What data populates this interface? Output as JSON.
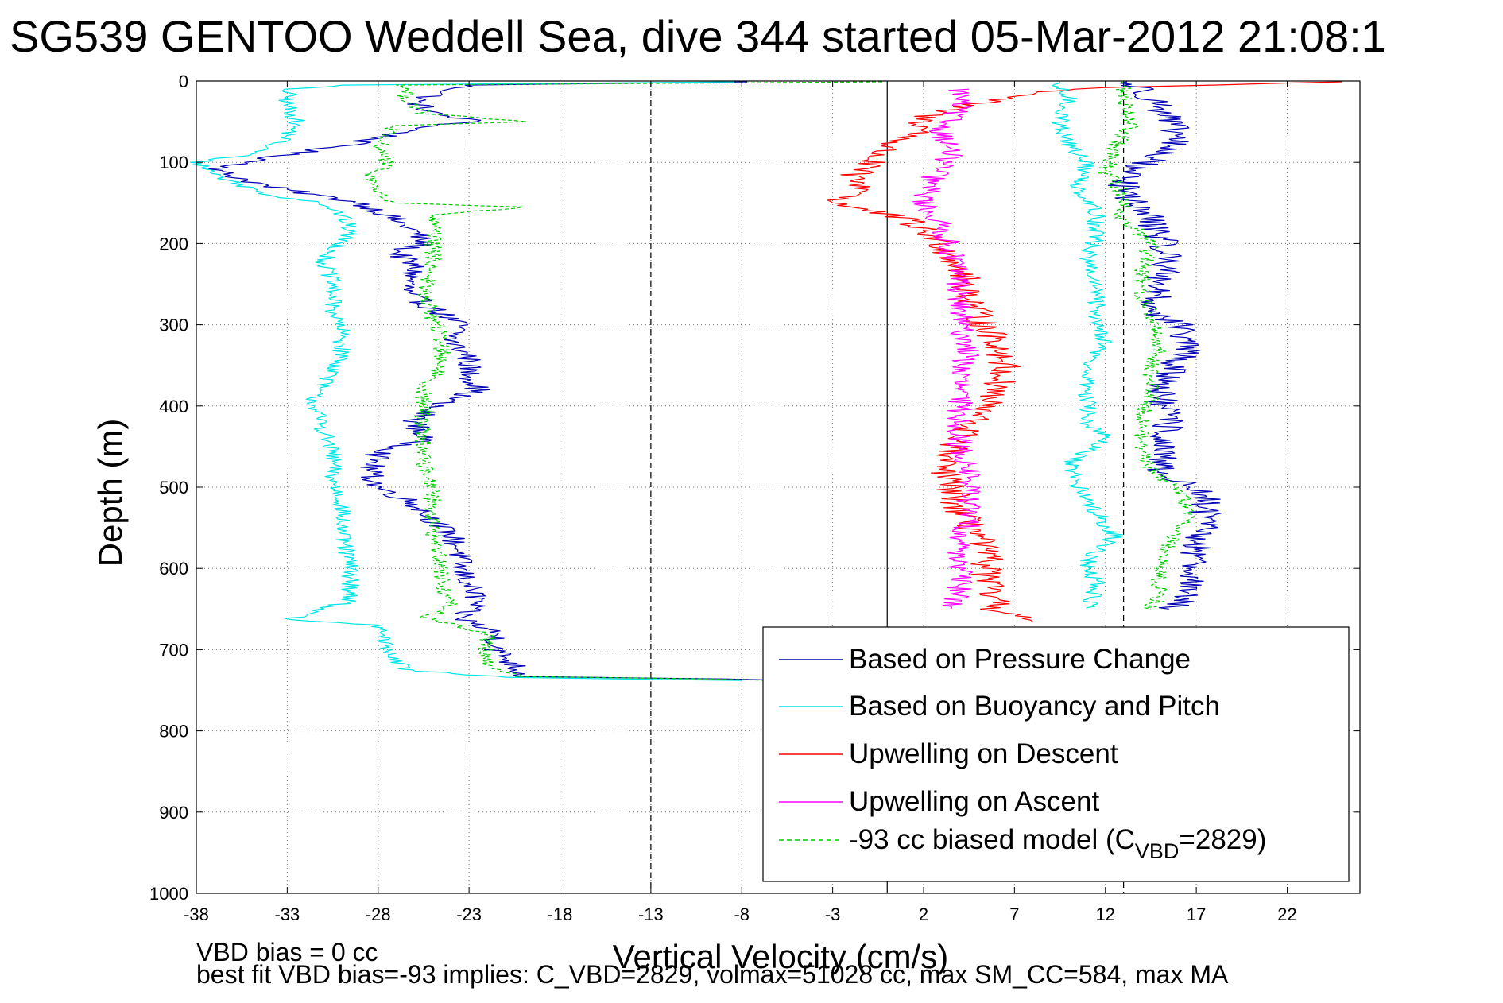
{
  "chart_data": {
    "type": "line",
    "title": "SG539 GENTOO Weddell Sea, dive 344 started 05-Mar-2012 21:08:1",
    "xlabel": "Vertical Velocity (cm/s)",
    "ylabel": "Depth (m)",
    "xlim": [
      -38,
      26
    ],
    "ylim": [
      0,
      1000
    ],
    "y_reversed": true,
    "grid": true,
    "xticks": [
      -38,
      -33,
      -28,
      -23,
      -18,
      -13,
      -8,
      -3,
      2,
      7,
      12,
      17,
      22
    ],
    "yticks": [
      0,
      100,
      200,
      300,
      400,
      500,
      600,
      700,
      800,
      900,
      1000
    ],
    "legend_position": "bottom-right",
    "reference_lines": [
      {
        "x": -13,
        "style": "dashed",
        "color": "#000000"
      },
      {
        "x": 0,
        "style": "solid",
        "color": "#000000"
      },
      {
        "x": 13,
        "style": "dashed",
        "color": "#000000"
      }
    ],
    "series": [
      {
        "name": "Based on Pressure Change",
        "color": "#0000b4",
        "style": "solid",
        "noise": 0.7,
        "points": [
          [
            -8,
            1
          ],
          [
            -23,
            5
          ],
          [
            -24.5,
            15
          ],
          [
            -26,
            25
          ],
          [
            -25,
            40
          ],
          [
            -22.5,
            50
          ],
          [
            -25,
            55
          ],
          [
            -26,
            60
          ],
          [
            -30,
            80
          ],
          [
            -33,
            90
          ],
          [
            -35,
            100
          ],
          [
            -37,
            110
          ],
          [
            -34,
            130
          ],
          [
            -29,
            150
          ],
          [
            -27.5,
            165
          ],
          [
            -26,
            185
          ],
          [
            -25.5,
            200
          ],
          [
            -27,
            210
          ],
          [
            -26,
            230
          ],
          [
            -26.5,
            260
          ],
          [
            -25,
            280
          ],
          [
            -23.5,
            300
          ],
          [
            -24,
            320
          ],
          [
            -23,
            340
          ],
          [
            -23,
            360
          ],
          [
            -22.5,
            380
          ],
          [
            -25,
            400
          ],
          [
            -26,
            420
          ],
          [
            -25.5,
            440
          ],
          [
            -28,
            460
          ],
          [
            -28.5,
            480
          ],
          [
            -28,
            500
          ],
          [
            -26,
            520
          ],
          [
            -25,
            540
          ],
          [
            -24,
            560
          ],
          [
            -23.5,
            580
          ],
          [
            -23.5,
            600
          ],
          [
            -23,
            620
          ],
          [
            -22.5,
            640
          ],
          [
            -23.5,
            660
          ],
          [
            -21.5,
            680
          ],
          [
            -21.5,
            700
          ],
          [
            -20.5,
            720
          ],
          [
            -20,
            733
          ],
          [
            -9,
            736
          ],
          [
            -5,
            738
          ]
        ]
      },
      {
        "name": "Based on Buoyancy and Pitch",
        "color": "#00e5e5",
        "style": "solid",
        "noise": 0.5,
        "points": [
          [
            -8,
            1
          ],
          [
            -30,
            5
          ],
          [
            -33,
            10
          ],
          [
            -33,
            30
          ],
          [
            -32.5,
            50
          ],
          [
            -33,
            70
          ],
          [
            -35,
            90
          ],
          [
            -38,
            100
          ],
          [
            -36.5,
            120
          ],
          [
            -34,
            140
          ],
          [
            -31,
            150
          ],
          [
            -30,
            165
          ],
          [
            -29.5,
            185
          ],
          [
            -30,
            200
          ],
          [
            -31,
            220
          ],
          [
            -30.5,
            250
          ],
          [
            -30.5,
            280
          ],
          [
            -30,
            310
          ],
          [
            -30,
            340
          ],
          [
            -30.5,
            360
          ],
          [
            -31.5,
            385
          ],
          [
            -31.5,
            400
          ],
          [
            -31,
            430
          ],
          [
            -30.5,
            460
          ],
          [
            -30.5,
            490
          ],
          [
            -30,
            520
          ],
          [
            -30,
            560
          ],
          [
            -29.5,
            600
          ],
          [
            -29.5,
            640
          ],
          [
            -33,
            663
          ],
          [
            -28,
            670
          ],
          [
            -27.5,
            700
          ],
          [
            -26.5,
            725
          ],
          [
            -21,
            734
          ],
          [
            -15,
            736
          ],
          [
            -8,
            738
          ]
        ]
      },
      {
        "name": "Upwelling on Descent",
        "color": "#ff0000",
        "style": "solid",
        "noise": 0.9,
        "points": [
          [
            25,
            1
          ],
          [
            21,
            3
          ],
          [
            18,
            5
          ],
          [
            12,
            8
          ],
          [
            10,
            10
          ],
          [
            7,
            20
          ],
          [
            4,
            30
          ],
          [
            2,
            45
          ],
          [
            2,
            60
          ],
          [
            0,
            80
          ],
          [
            -1,
            100
          ],
          [
            -2,
            120
          ],
          [
            -1,
            135
          ],
          [
            -3,
            150
          ],
          [
            1,
            170
          ],
          [
            3,
            200
          ],
          [
            4,
            230
          ],
          [
            4.5,
            260
          ],
          [
            5,
            290
          ],
          [
            6,
            320
          ],
          [
            6.5,
            350
          ],
          [
            6,
            380
          ],
          [
            5,
            410
          ],
          [
            4,
            440
          ],
          [
            3,
            470
          ],
          [
            3.5,
            500
          ],
          [
            4,
            530
          ],
          [
            5,
            560
          ],
          [
            5.5,
            590
          ],
          [
            5.5,
            620
          ],
          [
            6,
            650
          ],
          [
            8,
            665
          ]
        ]
      },
      {
        "name": "Upwelling on Ascent",
        "color": "#ff00ff",
        "style": "solid",
        "noise": 0.7,
        "points": [
          [
            4,
            10
          ],
          [
            4,
            30
          ],
          [
            3,
            60
          ],
          [
            3.5,
            90
          ],
          [
            2.5,
            120
          ],
          [
            2,
            150
          ],
          [
            3,
            180
          ],
          [
            3.5,
            210
          ],
          [
            4,
            240
          ],
          [
            4,
            270
          ],
          [
            4,
            300
          ],
          [
            4.5,
            330
          ],
          [
            4,
            360
          ],
          [
            4,
            390
          ],
          [
            4,
            420
          ],
          [
            4,
            450
          ],
          [
            4.5,
            480
          ],
          [
            4.5,
            510
          ],
          [
            4.5,
            540
          ],
          [
            4,
            570
          ],
          [
            4,
            600
          ],
          [
            4,
            630
          ],
          [
            3.5,
            650
          ]
        ]
      },
      {
        "name": "-93 cc biased model",
        "color": "#00cc00",
        "style": "dashed",
        "noise": 0.5,
        "points": [
          [
            0,
            1
          ],
          [
            -26.5,
            5
          ],
          [
            -26.5,
            20
          ],
          [
            -25.5,
            40
          ],
          [
            -20,
            50
          ],
          [
            -27,
            55
          ],
          [
            -28,
            70
          ],
          [
            -27.5,
            100
          ],
          [
            -28.5,
            120
          ],
          [
            -27.5,
            150
          ],
          [
            -20,
            155
          ],
          [
            -25,
            165
          ],
          [
            -25,
            200
          ],
          [
            -25,
            230
          ],
          [
            -25.5,
            260
          ],
          [
            -25,
            290
          ],
          [
            -24.5,
            320
          ],
          [
            -24.5,
            350
          ],
          [
            -25.5,
            380
          ],
          [
            -25.5,
            410
          ],
          [
            -25.5,
            440
          ],
          [
            -25.5,
            470
          ],
          [
            -25,
            500
          ],
          [
            -25,
            530
          ],
          [
            -25,
            560
          ],
          [
            -24.5,
            590
          ],
          [
            -24.5,
            620
          ],
          [
            -24,
            650
          ],
          [
            -25.5,
            660
          ],
          [
            -22,
            680
          ],
          [
            -22,
            700
          ],
          [
            -22,
            720
          ],
          [
            -20,
            733
          ],
          [
            -10,
            736
          ],
          [
            -6,
            738
          ]
        ]
      },
      {
        "name": "Based on Pressure Change (ascent)",
        "color": "#0000b4",
        "style": "solid",
        "noise": 0.9,
        "points": [
          [
            13,
            1
          ],
          [
            14,
            10
          ],
          [
            15,
            30
          ],
          [
            15.5,
            50
          ],
          [
            16,
            70
          ],
          [
            15,
            90
          ],
          [
            13.5,
            110
          ],
          [
            13,
            130
          ],
          [
            13.5,
            150
          ],
          [
            14.5,
            170
          ],
          [
            15,
            190
          ],
          [
            15.5,
            220
          ],
          [
            15,
            250
          ],
          [
            14.5,
            280
          ],
          [
            16,
            300
          ],
          [
            16.5,
            330
          ],
          [
            15.5,
            360
          ],
          [
            15,
            390
          ],
          [
            15.5,
            420
          ],
          [
            15,
            450
          ],
          [
            15,
            480
          ],
          [
            17.5,
            510
          ],
          [
            17.5,
            540
          ],
          [
            17,
            570
          ],
          [
            17,
            600
          ],
          [
            16.5,
            630
          ],
          [
            15.5,
            650
          ]
        ]
      },
      {
        "name": "Based on Buoyancy and Pitch (ascent)",
        "color": "#00e5e5",
        "style": "solid",
        "noise": 0.5,
        "points": [
          [
            9,
            1
          ],
          [
            10,
            20
          ],
          [
            9.5,
            50
          ],
          [
            10,
            80
          ],
          [
            11,
            100
          ],
          [
            10.5,
            130
          ],
          [
            11.5,
            160
          ],
          [
            11.5,
            190
          ],
          [
            11,
            220
          ],
          [
            11.5,
            260
          ],
          [
            11.5,
            290
          ],
          [
            12,
            320
          ],
          [
            11,
            350
          ],
          [
            11,
            380
          ],
          [
            11,
            420
          ],
          [
            12,
            440
          ],
          [
            10,
            470
          ],
          [
            10.5,
            500
          ],
          [
            11.5,
            530
          ],
          [
            12.5,
            560
          ],
          [
            11,
            590
          ],
          [
            11.5,
            620
          ],
          [
            11,
            650
          ]
        ]
      },
      {
        "name": "-93 cc biased model (ascent)",
        "color": "#00cc00",
        "style": "dashed",
        "noise": 0.5,
        "points": [
          [
            13,
            1
          ],
          [
            13,
            20
          ],
          [
            13.5,
            50
          ],
          [
            12.5,
            80
          ],
          [
            12,
            110
          ],
          [
            13,
            140
          ],
          [
            13,
            170
          ],
          [
            14.5,
            200
          ],
          [
            14,
            230
          ],
          [
            14,
            260
          ],
          [
            14.5,
            290
          ],
          [
            15,
            320
          ],
          [
            14.5,
            360
          ],
          [
            14.5,
            390
          ],
          [
            14,
            420
          ],
          [
            14,
            450
          ],
          [
            14.5,
            480
          ],
          [
            16.5,
            510
          ],
          [
            16.5,
            540
          ],
          [
            15.5,
            570
          ],
          [
            15,
            600
          ],
          [
            15,
            630
          ],
          [
            14.5,
            650
          ]
        ]
      }
    ],
    "legend": [
      {
        "label": "Based on Pressure Change",
        "color": "#0000b4",
        "style": "solid"
      },
      {
        "label": "Based on Buoyancy and Pitch",
        "color": "#00e5e5",
        "style": "solid"
      },
      {
        "label": "Upwelling on Descent",
        "color": "#ff0000",
        "style": "solid"
      },
      {
        "label": "Upwelling on Ascent",
        "color": "#ff00ff",
        "style": "solid"
      },
      {
        "label": "-93 cc biased model (C",
        "sub": "VBD",
        "suffix": "=2829)",
        "color": "#00cc00",
        "style": "dashed"
      }
    ]
  },
  "footnotes": {
    "line1": "VBD bias = 0 cc",
    "line2": "best fit VBD bias=-93 implies: C_VBD=2829, volmax=51028 cc, max SM_CC=584, max MA"
  }
}
